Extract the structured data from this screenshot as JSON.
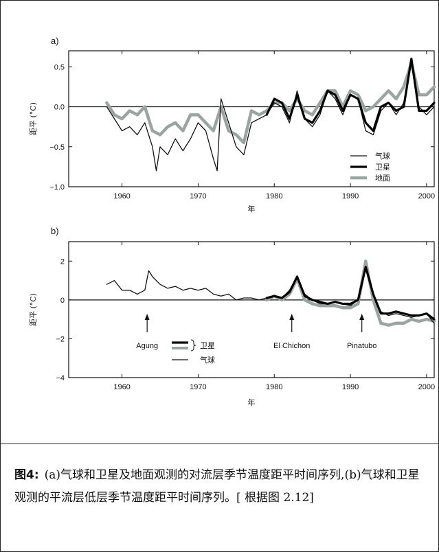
{
  "caption": {
    "label": "图4:",
    "text": "(a)气球和卫星及地面观测的对流层季节温度距平时间序列,(b)气球和卫星观测的平流层低层季节温度距平时间序列。[ 根据图 2.12]"
  },
  "colors": {
    "balloon": "#111111",
    "satellite": "#000000",
    "surface": "#9aa59f",
    "axis": "#111111"
  },
  "chart_data": [
    {
      "type": "line",
      "panel_label": "a)",
      "xlabel": "年",
      "ylabel": "距平 (°C)",
      "xlim": [
        1953,
        2001
      ],
      "ylim": [
        -1.0,
        0.7
      ],
      "x_ticks": [
        1960,
        1970,
        1980,
        1990,
        2000
      ],
      "y_ticks": [
        -1.0,
        -0.5,
        0.0,
        0.5
      ],
      "y_tick_labels": [
        "−1.0",
        "−0.5",
        "0.0",
        "0.5"
      ],
      "zero_line": true,
      "legend_position": "bottom-right",
      "legend": [
        "气球",
        "卫星",
        "地面"
      ],
      "series": [
        {
          "name": "气球",
          "role": "balloon",
          "x": [
            1958.0,
            1959.0,
            1960.0,
            1961.0,
            1962.0,
            1963.0,
            1964.0,
            1964.5,
            1965.0,
            1966.0,
            1967.0,
            1968.0,
            1969.0,
            1970.0,
            1971.0,
            1972.0,
            1972.5,
            1973.0,
            1974.0,
            1975.0,
            1976.0,
            1977.0,
            1978.0,
            1979.0,
            1980.0,
            1981.0,
            1982.0,
            1983.0,
            1984.0,
            1985.0,
            1986.0,
            1987.0,
            1988.0,
            1989.0,
            1990.0,
            1991.0,
            1992.0,
            1993.0,
            1994.0,
            1995.0,
            1996.0,
            1997.0,
            1998.0,
            1999.0,
            2000.0,
            2001.0
          ],
          "y": [
            0.0,
            -0.15,
            -0.3,
            -0.25,
            -0.35,
            -0.2,
            -0.5,
            -0.8,
            -0.5,
            -0.6,
            -0.4,
            -0.55,
            -0.4,
            -0.2,
            -0.3,
            -0.65,
            -0.8,
            0.1,
            -0.2,
            -0.5,
            -0.6,
            -0.2,
            -0.15,
            -0.1,
            0.05,
            0.0,
            -0.2,
            0.2,
            -0.15,
            -0.25,
            -0.1,
            0.2,
            0.1,
            -0.1,
            0.15,
            0.1,
            -0.3,
            -0.35,
            -0.05,
            0.05,
            -0.1,
            0.05,
            0.6,
            0.0,
            -0.1,
            0.0
          ]
        },
        {
          "name": "卫星",
          "role": "satellite",
          "x": [
            1979.0,
            1980.0,
            1981.0,
            1982.0,
            1983.0,
            1984.0,
            1985.0,
            1986.0,
            1987.0,
            1988.0,
            1989.0,
            1990.0,
            1991.0,
            1992.0,
            1993.0,
            1994.0,
            1995.0,
            1996.0,
            1997.0,
            1998.0,
            1999.0,
            2000.0,
            2001.0
          ],
          "y": [
            -0.1,
            0.1,
            0.05,
            -0.15,
            0.15,
            -0.15,
            -0.2,
            -0.05,
            0.2,
            0.15,
            -0.05,
            0.15,
            0.1,
            -0.2,
            -0.3,
            0.0,
            0.05,
            -0.05,
            0.0,
            0.6,
            -0.05,
            -0.05,
            0.05
          ]
        },
        {
          "name": "地面",
          "role": "surface",
          "x": [
            1958.0,
            1959.0,
            1960.0,
            1961.0,
            1962.0,
            1963.0,
            1964.0,
            1965.0,
            1966.0,
            1967.0,
            1968.0,
            1969.0,
            1970.0,
            1971.0,
            1972.0,
            1973.0,
            1974.0,
            1975.0,
            1976.0,
            1977.0,
            1978.0,
            1979.0,
            1980.0,
            1981.0,
            1982.0,
            1983.0,
            1984.0,
            1985.0,
            1986.0,
            1987.0,
            1988.0,
            1989.0,
            1990.0,
            1991.0,
            1992.0,
            1993.0,
            1994.0,
            1995.0,
            1996.0,
            1997.0,
            1998.0,
            1999.0,
            2000.0,
            2001.0
          ],
          "y": [
            0.05,
            -0.1,
            -0.15,
            -0.05,
            -0.1,
            0.0,
            -0.3,
            -0.35,
            -0.25,
            -0.2,
            -0.3,
            -0.1,
            -0.1,
            -0.2,
            -0.3,
            0.0,
            -0.3,
            -0.35,
            -0.45,
            -0.05,
            -0.1,
            -0.05,
            0.05,
            0.05,
            -0.05,
            0.1,
            -0.05,
            -0.1,
            0.05,
            0.2,
            0.2,
            0.0,
            0.2,
            0.15,
            -0.05,
            0.0,
            0.1,
            0.2,
            0.1,
            0.25,
            0.55,
            0.15,
            0.15,
            0.25
          ]
        }
      ]
    },
    {
      "type": "line",
      "panel_label": "b)",
      "xlabel": "年",
      "ylabel": "距平 (°C)",
      "xlim": [
        1953,
        2001
      ],
      "ylim": [
        -4,
        3
      ],
      "x_ticks": [
        1960,
        1970,
        1980,
        1990,
        2000
      ],
      "y_ticks": [
        -4,
        -2,
        0,
        2
      ],
      "y_tick_labels": [
        "−4",
        "−2",
        "0",
        "2"
      ],
      "zero_line": true,
      "legend": [
        "卫星",
        "气球"
      ],
      "annotations": [
        {
          "label": "Agung",
          "year": 1963.3
        },
        {
          "label": "El Chichon",
          "year": 1982.3
        },
        {
          "label": "Pinatubo",
          "year": 1991.5
        }
      ],
      "series": [
        {
          "name": "气球",
          "role": "balloon",
          "x": [
            1958.0,
            1959.0,
            1960.0,
            1961.0,
            1962.0,
            1963.0,
            1963.5,
            1964.0,
            1965.0,
            1966.0,
            1967.0,
            1968.0,
            1969.0,
            1970.0,
            1971.0,
            1972.0,
            1973.0,
            1974.0,
            1975.0,
            1976.0,
            1977.0,
            1978.0,
            1979.0,
            1980.0,
            1981.0,
            1982.0,
            1983.0,
            1984.0,
            1985.0,
            1986.0,
            1987.0,
            1988.0,
            1989.0,
            1990.0,
            1991.0,
            1992.0,
            1993.0,
            1994.0,
            1995.0,
            1996.0,
            1997.0,
            1998.0,
            1999.0,
            2000.0,
            2001.0
          ],
          "y": [
            0.8,
            1.0,
            0.5,
            0.5,
            0.3,
            0.5,
            1.5,
            1.2,
            0.8,
            0.6,
            0.7,
            0.5,
            0.6,
            0.5,
            0.6,
            0.3,
            0.2,
            0.3,
            0.0,
            0.1,
            0.1,
            0.0,
            0.1,
            0.2,
            0.1,
            0.5,
            1.2,
            0.3,
            0.0,
            -0.2,
            -0.2,
            -0.1,
            -0.2,
            -0.3,
            0.0,
            1.6,
            0.3,
            -0.6,
            -0.8,
            -0.7,
            -0.8,
            -0.9,
            -0.8,
            -0.7,
            -1.2
          ]
        },
        {
          "name": "卫星",
          "role": "satellite",
          "x": [
            1979.0,
            1980.0,
            1981.0,
            1982.0,
            1983.0,
            1984.0,
            1985.0,
            1986.0,
            1987.0,
            1988.0,
            1989.0,
            1990.0,
            1991.0,
            1992.0,
            1993.0,
            1994.0,
            1995.0,
            1996.0,
            1997.0,
            1998.0,
            1999.0,
            2000.0,
            2001.0
          ],
          "y": [
            0.1,
            0.2,
            0.1,
            0.4,
            1.2,
            0.2,
            0.0,
            -0.1,
            -0.2,
            -0.1,
            -0.2,
            -0.2,
            0.0,
            1.7,
            0.3,
            -0.7,
            -0.7,
            -0.6,
            -0.7,
            -0.8,
            -0.8,
            -0.7,
            -1.0
          ]
        },
        {
          "name": "卫星",
          "role": "satellite-alt",
          "x": [
            1979.0,
            1980.0,
            1981.0,
            1982.0,
            1983.0,
            1984.0,
            1985.0,
            1986.0,
            1987.0,
            1988.0,
            1989.0,
            1990.0,
            1991.0,
            1992.0,
            1993.0,
            1994.0,
            1995.0,
            1996.0,
            1997.0,
            1998.0,
            1999.0,
            2000.0,
            2001.0
          ],
          "y": [
            0.0,
            0.2,
            0.0,
            0.3,
            1.1,
            0.0,
            -0.2,
            -0.3,
            -0.3,
            -0.3,
            -0.4,
            -0.4,
            -0.2,
            2.0,
            0.0,
            -1.2,
            -1.3,
            -1.2,
            -1.2,
            -1.0,
            -1.1,
            -1.0,
            -1.1
          ]
        }
      ]
    }
  ]
}
